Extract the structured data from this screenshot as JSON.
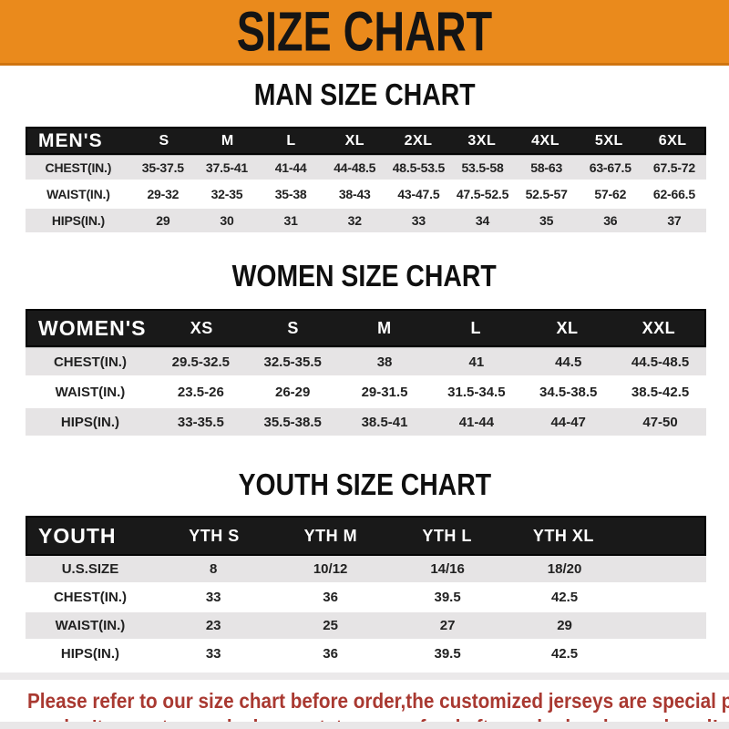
{
  "banner": {
    "title": "SIZE CHART"
  },
  "colors": {
    "banner_orange": "#EA8A1C",
    "header_bar_black": "#191919",
    "row_gray": "#E6E4E5",
    "footer_red": "#A93931"
  },
  "sections": [
    {
      "id": "men",
      "title": "MAN SIZE CHART",
      "header_label": "MEN'S",
      "columns": [
        "S",
        "M",
        "L",
        "XL",
        "2XL",
        "3XL",
        "4XL",
        "5XL",
        "6XL"
      ],
      "rows": [
        {
          "label": "CHEST(IN.)",
          "values": [
            "35-37.5",
            "37.5-41",
            "41-44",
            "44-48.5",
            "48.5-53.5",
            "53.5-58",
            "58-63",
            "63-67.5",
            "67.5-72"
          ]
        },
        {
          "label": "WAIST(IN.)",
          "values": [
            "29-32",
            "32-35",
            "35-38",
            "38-43",
            "43-47.5",
            "47.5-52.5",
            "52.5-57",
            "57-62",
            "62-66.5"
          ]
        },
        {
          "label": "HIPS(IN.)",
          "values": [
            "29",
            "30",
            "31",
            "32",
            "33",
            "34",
            "35",
            "36",
            "37"
          ]
        }
      ]
    },
    {
      "id": "women",
      "title": "WOMEN SIZE CHART",
      "header_label": "WOMEN'S",
      "columns": [
        "XS",
        "S",
        "M",
        "L",
        "XL",
        "XXL"
      ],
      "rows": [
        {
          "label": "CHEST(IN.)",
          "values": [
            "29.5-32.5",
            "32.5-35.5",
            "38",
            "41",
            "44.5",
            "44.5-48.5"
          ]
        },
        {
          "label": "WAIST(IN.)",
          "values": [
            "23.5-26",
            "26-29",
            "29-31.5",
            "31.5-34.5",
            "34.5-38.5",
            "38.5-42.5"
          ]
        },
        {
          "label": "HIPS(IN.)",
          "values": [
            "33-35.5",
            "35.5-38.5",
            "38.5-41",
            "41-44",
            "44-47",
            "47-50"
          ]
        }
      ]
    },
    {
      "id": "youth",
      "title": "YOUTH SIZE CHART",
      "header_label": "YOUTH",
      "columns": [
        "YTH S",
        "YTH M",
        "YTH L",
        "YTH XL"
      ],
      "rows": [
        {
          "label": "U.S.SIZE",
          "values": [
            "8",
            "10/12",
            "14/16",
            "18/20"
          ]
        },
        {
          "label": "CHEST(IN.)",
          "values": [
            "33",
            "36",
            "39.5",
            "42.5"
          ]
        },
        {
          "label": "WAIST(IN.)",
          "values": [
            "23",
            "25",
            "27",
            "29"
          ]
        },
        {
          "label": "HIPS(IN.)",
          "values": [
            "33",
            "36",
            "39.5",
            "42.5"
          ]
        }
      ]
    }
  ],
  "footer": {
    "line1": "Please refer to our size chart before order,the customized jerseys are special products,",
    "line2": "we don't accept cancel, change, teturn or refund after order has been placed!"
  }
}
